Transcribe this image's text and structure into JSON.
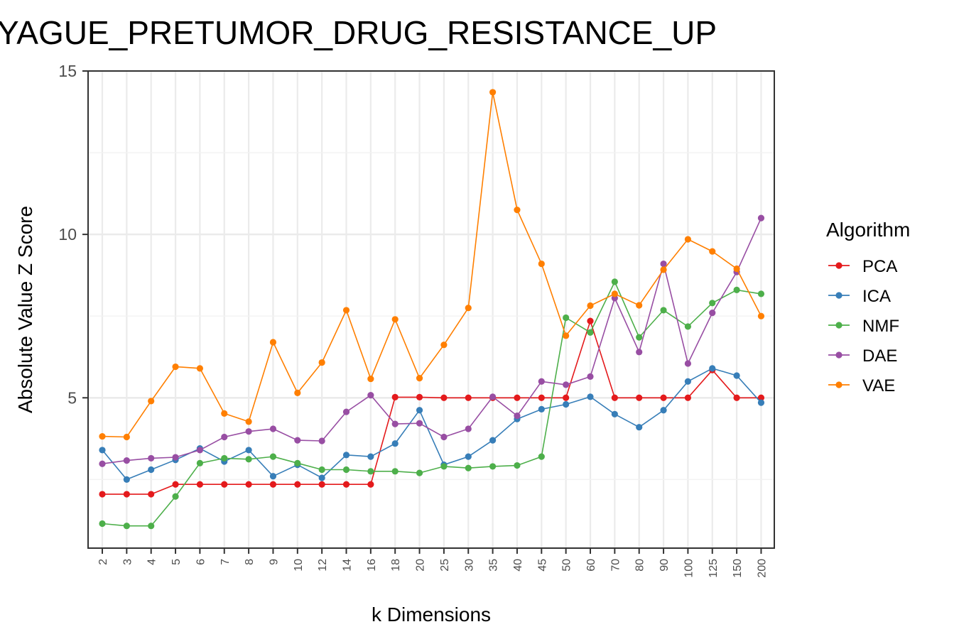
{
  "chart_data": {
    "type": "line",
    "title": "YAGUE_PRETUMOR_DRUG_RESISTANCE_UP",
    "xlabel": "k Dimensions",
    "ylabel": "Absolute Value Z Score",
    "categories": [
      "2",
      "3",
      "4",
      "5",
      "6",
      "7",
      "8",
      "9",
      "10",
      "12",
      "14",
      "16",
      "18",
      "20",
      "25",
      "30",
      "35",
      "40",
      "45",
      "50",
      "60",
      "70",
      "80",
      "90",
      "100",
      "125",
      "150",
      "200"
    ],
    "yticks": [
      "5",
      "10",
      "15"
    ],
    "ylim": [
      0.4,
      15
    ],
    "grid": true,
    "legend": {
      "title": "Algorithm",
      "position": "right"
    },
    "series": [
      {
        "name": "PCA",
        "color": "#E41A1C",
        "values": [
          2.05,
          2.05,
          2.05,
          2.35,
          2.35,
          2.35,
          2.35,
          2.35,
          2.35,
          2.35,
          2.35,
          2.35,
          5.02,
          5.02,
          5.0,
          5.0,
          5.0,
          5.0,
          5.0,
          5.0,
          7.35,
          5.0,
          5.0,
          5.0,
          5.0,
          5.85,
          5.0,
          5.0
        ]
      },
      {
        "name": "ICA",
        "color": "#377EB8",
        "values": [
          3.4,
          2.5,
          2.8,
          3.1,
          3.45,
          3.05,
          3.4,
          2.6,
          2.95,
          2.55,
          3.25,
          3.2,
          3.6,
          4.62,
          2.95,
          3.2,
          3.7,
          4.35,
          4.65,
          4.8,
          5.03,
          4.5,
          4.1,
          4.62,
          5.5,
          5.9,
          5.68,
          4.85
        ]
      },
      {
        "name": "NMF",
        "color": "#4DAF4A",
        "values": [
          1.15,
          1.08,
          1.08,
          1.98,
          3.0,
          3.15,
          3.12,
          3.2,
          3.0,
          2.8,
          2.8,
          2.75,
          2.75,
          2.7,
          2.9,
          2.85,
          2.9,
          2.93,
          3.2,
          7.45,
          7.0,
          8.55,
          6.85,
          7.68,
          7.18,
          7.9,
          8.3,
          8.18
        ]
      },
      {
        "name": "DAE",
        "color": "#984EA3",
        "values": [
          2.98,
          3.08,
          3.15,
          3.18,
          3.4,
          3.8,
          3.97,
          4.05,
          3.7,
          3.68,
          4.57,
          5.08,
          4.2,
          4.22,
          3.8,
          4.05,
          5.03,
          4.45,
          5.5,
          5.4,
          5.65,
          8.05,
          6.4,
          9.1,
          6.05,
          7.6,
          8.85,
          10.5
        ]
      },
      {
        "name": "VAE",
        "color": "#FF7F00",
        "values": [
          3.82,
          3.8,
          4.9,
          5.95,
          5.9,
          4.52,
          4.27,
          6.7,
          5.15,
          6.08,
          7.68,
          5.58,
          7.4,
          5.6,
          6.62,
          7.75,
          14.35,
          10.75,
          9.1,
          6.9,
          7.82,
          8.18,
          7.83,
          8.92,
          9.85,
          9.48,
          8.95,
          7.5
        ]
      }
    ]
  }
}
